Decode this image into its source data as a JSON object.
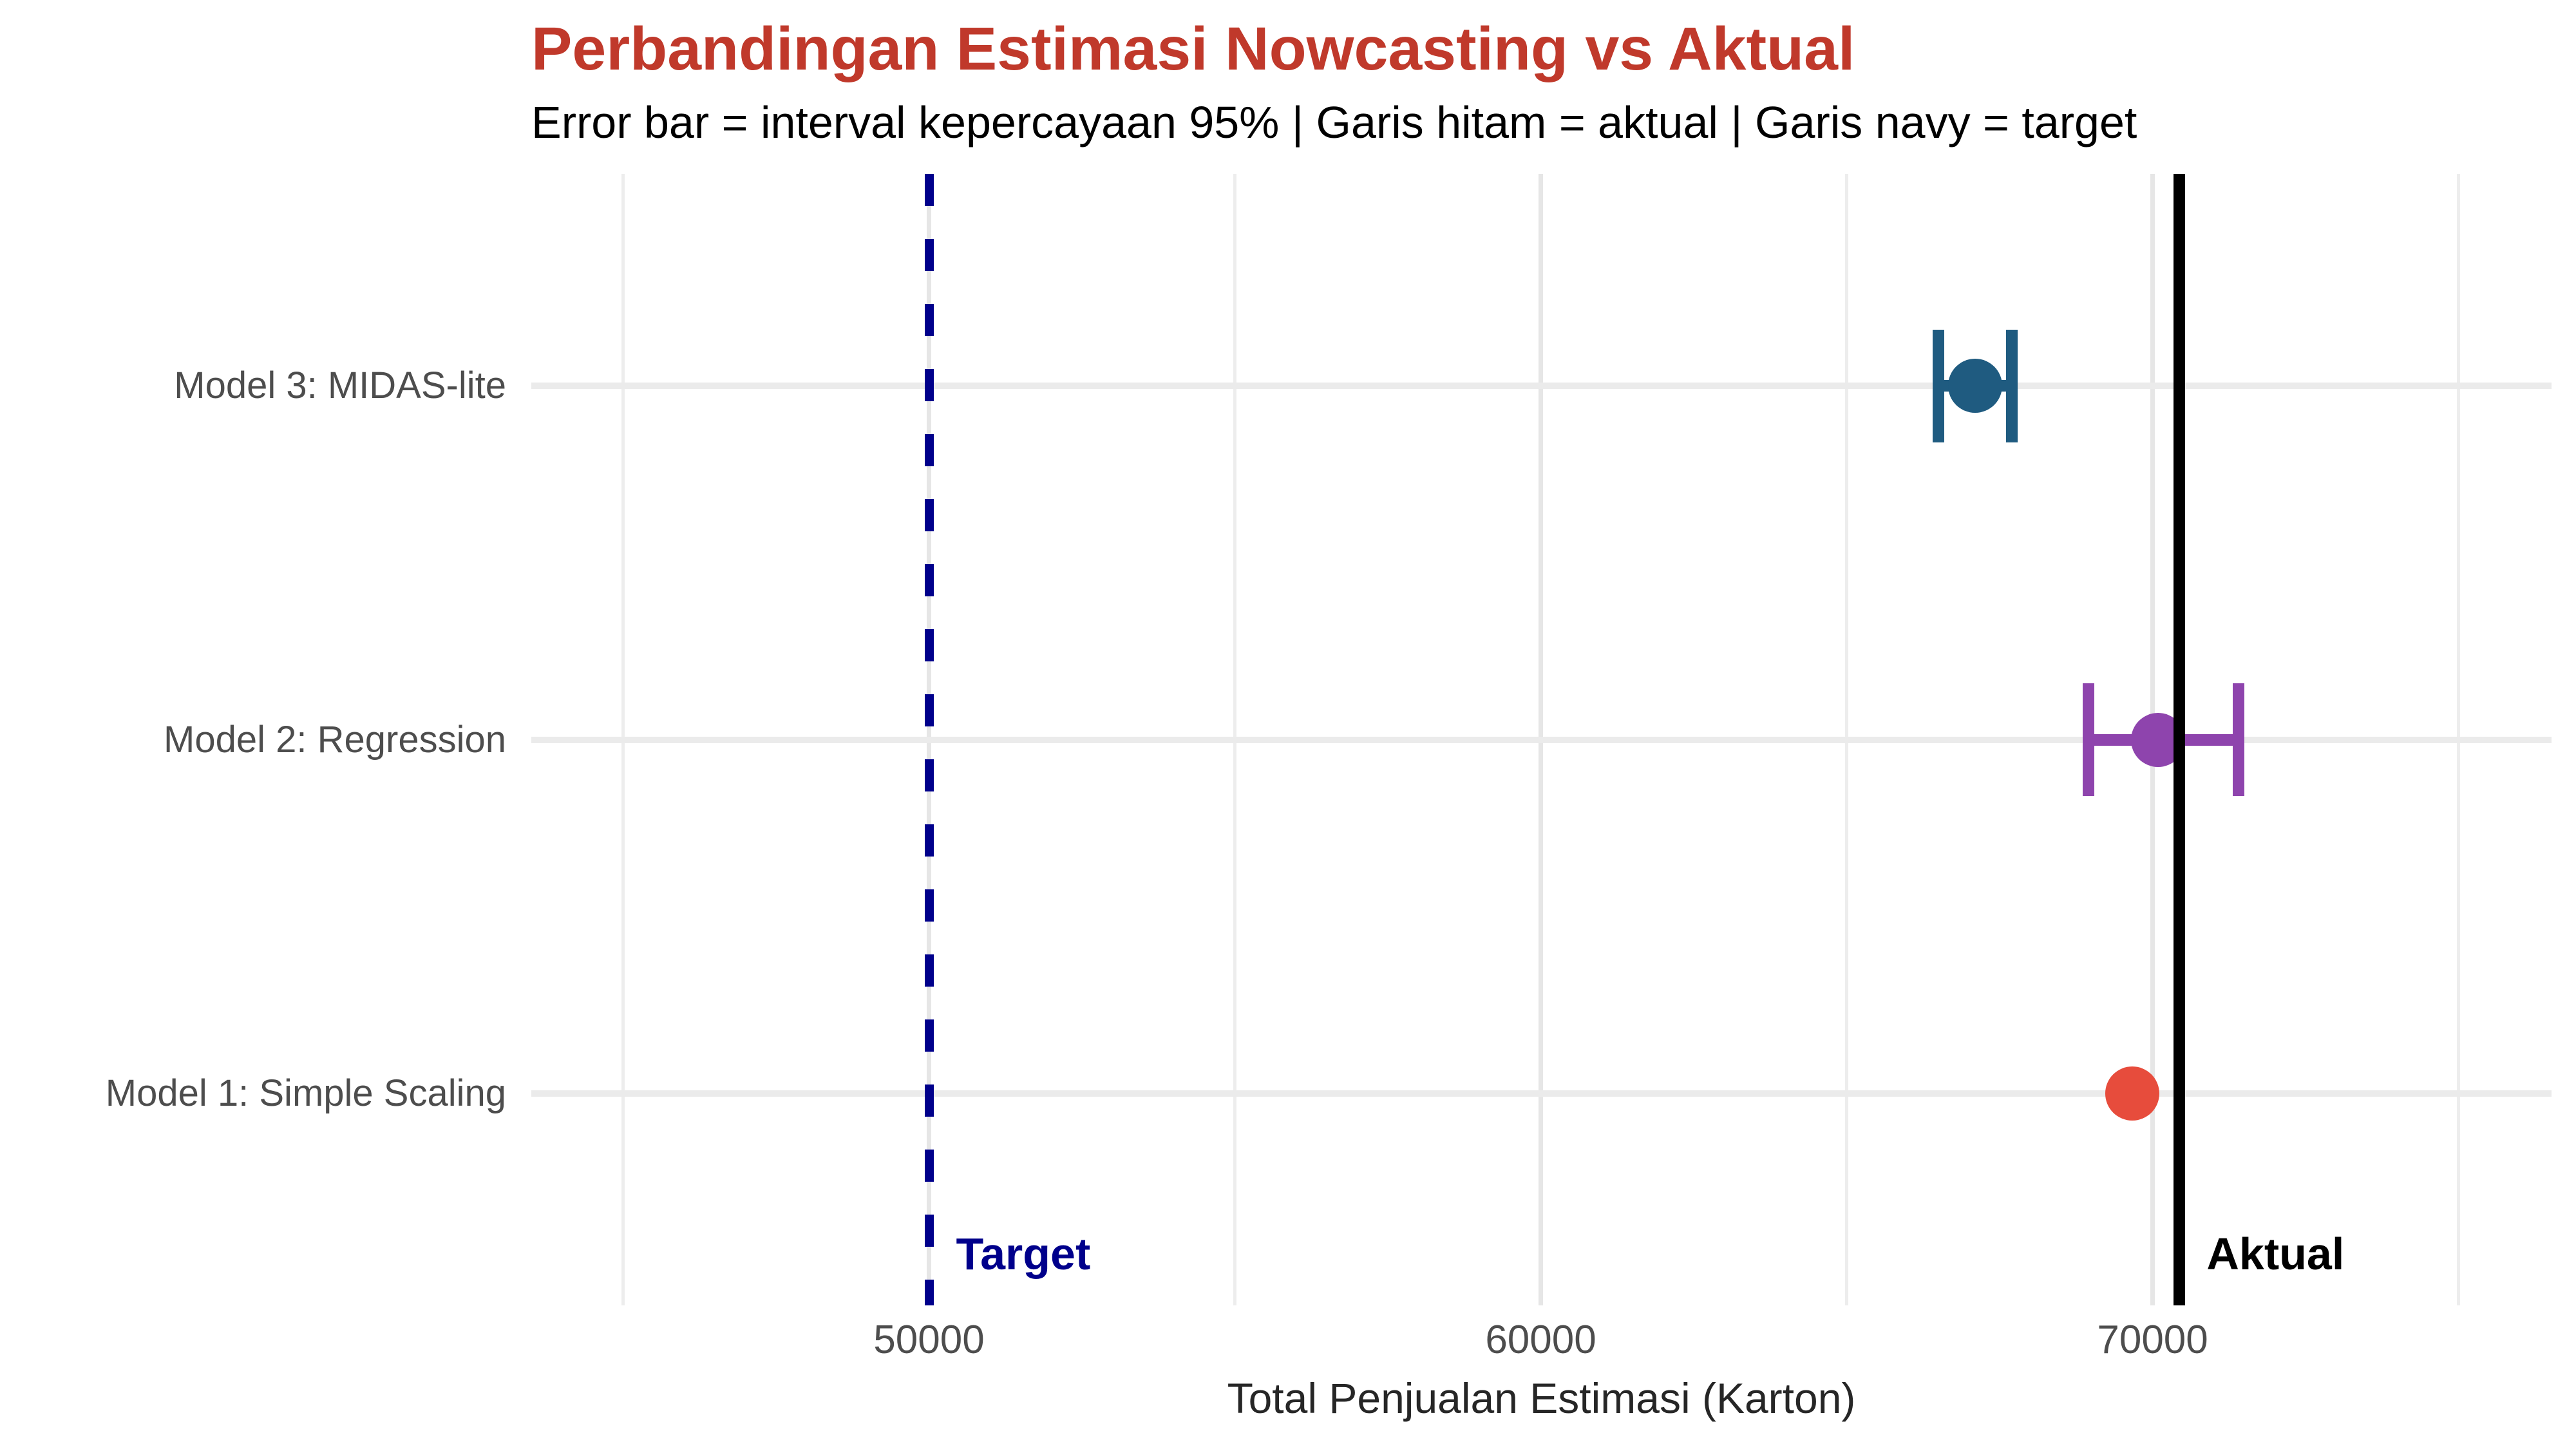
{
  "header": {
    "title": "Perbandingan Estimasi Nowcasting vs Aktual",
    "subtitle": "Error bar = interval kepercayaan 95% | Garis hitam = aktual | Garis navy = target",
    "title_color": "#c0392b"
  },
  "chart_data": {
    "type": "scatter",
    "subtype": "horizontal-dot-plot-with-error-bars",
    "title": "Perbandingan Estimasi Nowcasting vs Aktual",
    "subtitle": "Error bar = interval kepercayaan 95% | Garis hitam = aktual | Garis navy = target",
    "xlabel": "Total Penjualan Estimasi (Karton)",
    "ylabel": "",
    "x_domain": [
      43500,
      76520
    ],
    "x_major_ticks": [
      50000,
      60000,
      70000
    ],
    "x_tick_labels": [
      "50000",
      "60000",
      "70000"
    ],
    "x_minor_gridlines": [
      45000,
      55000,
      65000,
      75000
    ],
    "grid": "vertical major+minor, horizontal per category",
    "legend_position": "none",
    "series": [
      {
        "name": "Model 3: MIDAS-lite",
        "estimate": 67100,
        "ci_low": 66500,
        "ci_high": 67700,
        "color": "#1f5b80"
      },
      {
        "name": "Model 2: Regression",
        "estimate": 70090,
        "ci_low": 68950,
        "ci_high": 71400,
        "color": "#8e44ad"
      },
      {
        "name": "Model 1: Simple Scaling",
        "estimate": 69670,
        "ci_low": null,
        "ci_high": null,
        "color": "#e74c3c"
      }
    ],
    "reference_lines": [
      {
        "label": "Target",
        "value": 50000,
        "color": "#00008b",
        "style": "dashed"
      },
      {
        "label": "Aktual",
        "value": 70440,
        "color": "#000000",
        "style": "solid"
      }
    ]
  }
}
